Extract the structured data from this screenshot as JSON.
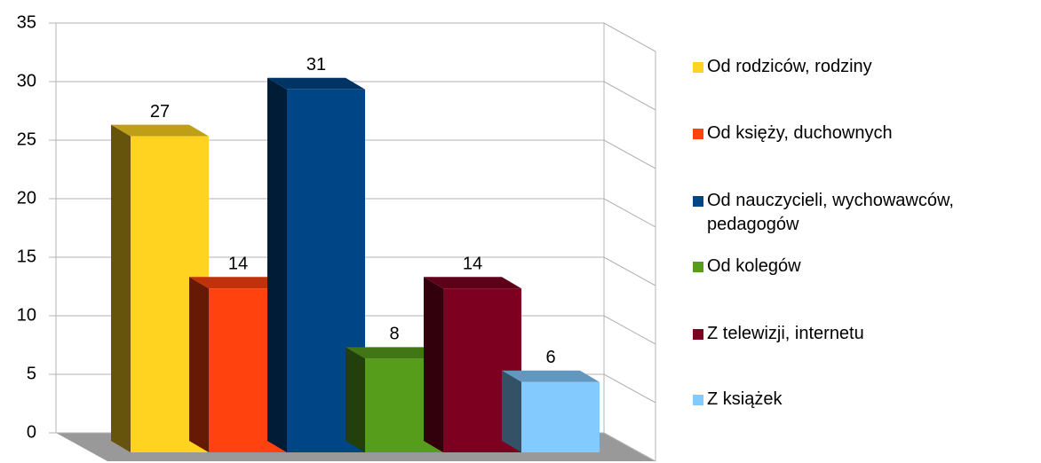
{
  "chart_data": {
    "type": "bar",
    "series": [
      {
        "name": "Od rodziców, rodziny",
        "color": "#ffd320",
        "values": [
          27
        ]
      },
      {
        "name": "Od księży, duchownych",
        "color": "#ff420e",
        "values": [
          14
        ]
      },
      {
        "name": "Od nauczycieli, wychowawców, pedagogów",
        "color": "#004586",
        "values": [
          31
        ]
      },
      {
        "name": "Od kolegów",
        "color": "#579d1c",
        "values": [
          8
        ]
      },
      {
        "name": "Z telewizji, internetu",
        "color": "#7e0021",
        "values": [
          14
        ]
      },
      {
        "name": "Z książek",
        "color": "#83caff",
        "values": [
          6
        ]
      }
    ],
    "ylim": [
      0,
      35
    ],
    "yticks": [
      0,
      5,
      10,
      15,
      20,
      25,
      30,
      35
    ],
    "grid": true,
    "legend": "right"
  }
}
